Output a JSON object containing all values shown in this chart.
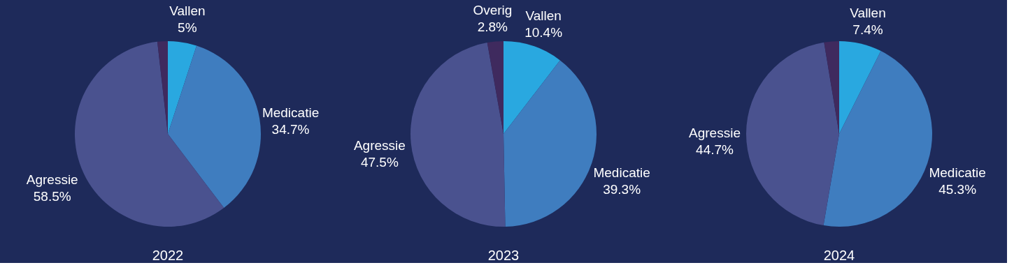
{
  "chart_data": [
    {
      "type": "pie",
      "title": "2022",
      "categories": [
        "Vallen",
        "Medicatie",
        "Agressie",
        null
      ],
      "values": [
        5,
        34.7,
        58.5,
        1.8
      ],
      "value_labels": [
        "5%",
        "34.7%",
        "58.5%",
        null
      ],
      "colors": [
        "#29a8e0",
        "#3f7dbf",
        "#4a528f",
        "#3f2a5e"
      ]
    },
    {
      "type": "pie",
      "title": "2023",
      "categories": [
        "Vallen",
        "Medicatie",
        "Agressie",
        "Overig"
      ],
      "values": [
        10.4,
        39.3,
        47.5,
        2.8
      ],
      "value_labels": [
        "10.4%",
        "39.3%",
        "47.5%",
        "2.8%"
      ],
      "colors": [
        "#29a8e0",
        "#3f7dbf",
        "#4a528f",
        "#3f2a5e"
      ]
    },
    {
      "type": "pie",
      "title": "2024",
      "categories": [
        "Vallen",
        "Medicatie",
        "Agressie",
        null
      ],
      "values": [
        7.4,
        45.3,
        44.7,
        2.6
      ],
      "value_labels": [
        "7.4%",
        "45.3%",
        "44.7%",
        null
      ],
      "colors": [
        "#29a8e0",
        "#3f7dbf",
        "#4a528f",
        "#3f2a5e"
      ]
    }
  ]
}
